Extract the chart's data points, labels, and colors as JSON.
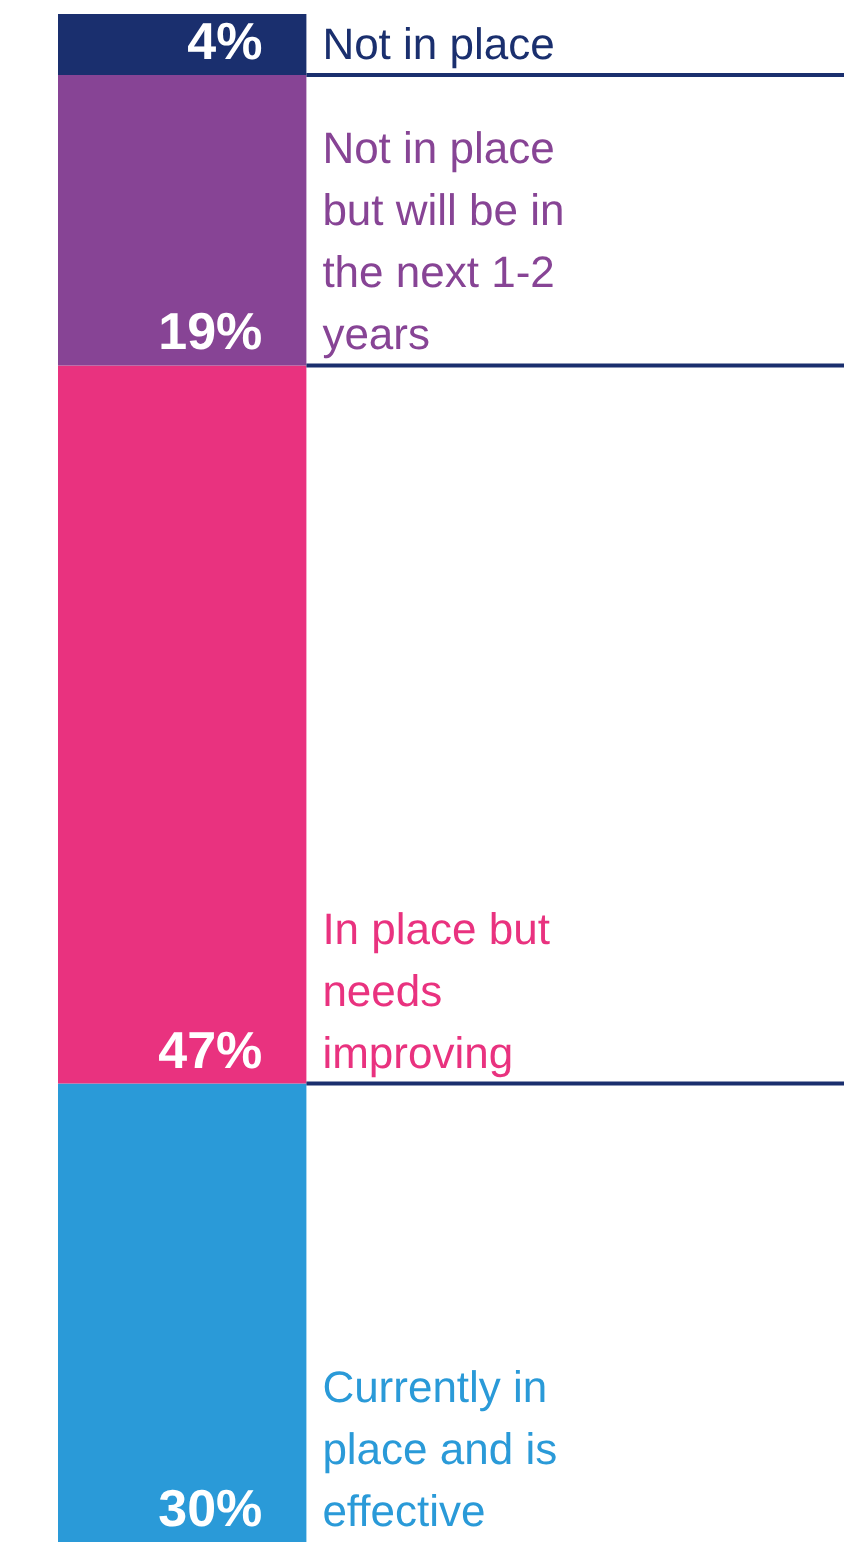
{
  "chart_data": {
    "type": "bar",
    "stacked": true,
    "categories": [
      null
    ],
    "ylim": [
      0,
      100
    ],
    "tick_labels": false,
    "grid": false,
    "legend": false,
    "series": [
      {
        "name": "Currently in place and is effective",
        "color": "#2a9ad8",
        "values": [
          30
        ],
        "value_labels": [
          "30%"
        ]
      },
      {
        "name": "In place but needs improving",
        "color": "#e9327f",
        "values": [
          47
        ],
        "value_labels": [
          "47%"
        ]
      },
      {
        "name": "Not in place but will be in the next 1-2 years",
        "color": "#874495",
        "values": [
          19
        ],
        "value_labels": [
          "19%"
        ]
      },
      {
        "name": "Not in place",
        "color": "#1a2f6e",
        "values": [
          4
        ],
        "value_labels": [
          "4%"
        ]
      }
    ]
  }
}
